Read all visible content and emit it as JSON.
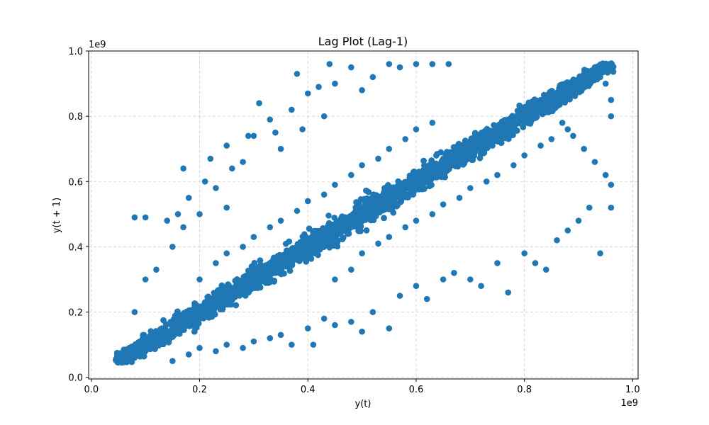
{
  "chart_data": {
    "type": "scatter",
    "title": "Lag Plot (Lag-1)",
    "xlabel": "y(t)",
    "ylabel": "y(t + 1)",
    "x_offset_label": "1e9",
    "y_offset_label": "1e9",
    "xlim": [
      0,
      1.01
    ],
    "ylim": [
      0,
      1.0
    ],
    "x_ticks": [
      0.0,
      0.2,
      0.4,
      0.6,
      0.8,
      1.0
    ],
    "y_ticks": [
      0.0,
      0.2,
      0.4,
      0.6,
      0.8,
      1.0
    ],
    "x_tick_labels": [
      "0.0",
      "0.2",
      "0.4",
      "0.6",
      "0.8",
      "1.0"
    ],
    "y_tick_labels": [
      "0.0",
      "0.2",
      "0.4",
      "0.6",
      "0.8",
      "1.0"
    ],
    "grid": true,
    "marker_color": "#1f77b4",
    "points": [
      [
        0.05,
        0.05
      ],
      [
        0.06,
        0.07
      ],
      [
        0.07,
        0.09
      ],
      [
        0.08,
        0.06
      ],
      [
        0.09,
        0.11
      ],
      [
        0.1,
        0.08
      ],
      [
        0.11,
        0.13
      ],
      [
        0.12,
        0.1
      ],
      [
        0.13,
        0.15
      ],
      [
        0.14,
        0.12
      ],
      [
        0.15,
        0.17
      ],
      [
        0.16,
        0.14
      ],
      [
        0.17,
        0.19
      ],
      [
        0.18,
        0.16
      ],
      [
        0.19,
        0.21
      ],
      [
        0.2,
        0.18
      ],
      [
        0.21,
        0.23
      ],
      [
        0.22,
        0.2
      ],
      [
        0.23,
        0.25
      ],
      [
        0.24,
        0.22
      ],
      [
        0.25,
        0.27
      ],
      [
        0.26,
        0.24
      ],
      [
        0.27,
        0.29
      ],
      [
        0.28,
        0.26
      ],
      [
        0.29,
        0.31
      ],
      [
        0.3,
        0.28
      ],
      [
        0.31,
        0.33
      ],
      [
        0.32,
        0.3
      ],
      [
        0.33,
        0.35
      ],
      [
        0.34,
        0.32
      ],
      [
        0.35,
        0.37
      ],
      [
        0.36,
        0.34
      ],
      [
        0.37,
        0.39
      ],
      [
        0.38,
        0.36
      ],
      [
        0.39,
        0.41
      ],
      [
        0.4,
        0.38
      ],
      [
        0.41,
        0.43
      ],
      [
        0.42,
        0.4
      ],
      [
        0.43,
        0.45
      ],
      [
        0.44,
        0.42
      ],
      [
        0.45,
        0.47
      ],
      [
        0.46,
        0.44
      ],
      [
        0.47,
        0.49
      ],
      [
        0.48,
        0.46
      ],
      [
        0.49,
        0.51
      ],
      [
        0.5,
        0.48
      ],
      [
        0.51,
        0.53
      ],
      [
        0.52,
        0.5
      ],
      [
        0.53,
        0.55
      ],
      [
        0.54,
        0.52
      ],
      [
        0.55,
        0.57
      ],
      [
        0.56,
        0.54
      ],
      [
        0.57,
        0.59
      ],
      [
        0.58,
        0.56
      ],
      [
        0.59,
        0.61
      ],
      [
        0.6,
        0.58
      ],
      [
        0.61,
        0.63
      ],
      [
        0.62,
        0.6
      ],
      [
        0.63,
        0.65
      ],
      [
        0.64,
        0.62
      ],
      [
        0.65,
        0.67
      ],
      [
        0.66,
        0.64
      ],
      [
        0.67,
        0.69
      ],
      [
        0.68,
        0.66
      ],
      [
        0.69,
        0.71
      ],
      [
        0.7,
        0.68
      ],
      [
        0.71,
        0.73
      ],
      [
        0.72,
        0.7
      ],
      [
        0.73,
        0.75
      ],
      [
        0.74,
        0.72
      ],
      [
        0.75,
        0.77
      ],
      [
        0.76,
        0.74
      ],
      [
        0.77,
        0.79
      ],
      [
        0.78,
        0.76
      ],
      [
        0.79,
        0.81
      ],
      [
        0.8,
        0.78
      ],
      [
        0.81,
        0.83
      ],
      [
        0.82,
        0.8
      ],
      [
        0.83,
        0.85
      ],
      [
        0.84,
        0.82
      ],
      [
        0.85,
        0.87
      ],
      [
        0.86,
        0.84
      ],
      [
        0.87,
        0.89
      ],
      [
        0.88,
        0.86
      ],
      [
        0.89,
        0.91
      ],
      [
        0.9,
        0.88
      ],
      [
        0.91,
        0.93
      ],
      [
        0.92,
        0.9
      ],
      [
        0.93,
        0.95
      ],
      [
        0.94,
        0.92
      ],
      [
        0.95,
        0.96
      ],
      [
        0.96,
        0.94
      ],
      [
        0.96,
        0.96
      ],
      [
        0.95,
        0.9
      ],
      [
        0.96,
        0.85
      ],
      [
        0.96,
        0.8
      ],
      [
        0.08,
        0.2
      ],
      [
        0.1,
        0.3
      ],
      [
        0.12,
        0.33
      ],
      [
        0.15,
        0.4
      ],
      [
        0.17,
        0.46
      ],
      [
        0.18,
        0.55
      ],
      [
        0.2,
        0.5
      ],
      [
        0.21,
        0.6
      ],
      [
        0.23,
        0.58
      ],
      [
        0.25,
        0.52
      ],
      [
        0.26,
        0.64
      ],
      [
        0.28,
        0.66
      ],
      [
        0.3,
        0.74
      ],
      [
        0.31,
        0.84
      ],
      [
        0.33,
        0.79
      ],
      [
        0.35,
        0.7
      ],
      [
        0.37,
        0.82
      ],
      [
        0.38,
        0.93
      ],
      [
        0.4,
        0.87
      ],
      [
        0.42,
        0.89
      ],
      [
        0.44,
        0.96
      ],
      [
        0.45,
        0.9
      ],
      [
        0.48,
        0.95
      ],
      [
        0.5,
        0.88
      ],
      [
        0.52,
        0.92
      ],
      [
        0.55,
        0.96
      ],
      [
        0.57,
        0.95
      ],
      [
        0.6,
        0.96
      ],
      [
        0.63,
        0.96
      ],
      [
        0.66,
        0.96
      ],
      [
        0.08,
        0.49
      ],
      [
        0.1,
        0.49
      ],
      [
        0.14,
        0.48
      ],
      [
        0.16,
        0.5
      ],
      [
        0.17,
        0.64
      ],
      [
        0.22,
        0.67
      ],
      [
        0.25,
        0.71
      ],
      [
        0.29,
        0.74
      ],
      [
        0.34,
        0.75
      ],
      [
        0.39,
        0.76
      ],
      [
        0.43,
        0.8
      ],
      [
        0.15,
        0.05
      ],
      [
        0.18,
        0.07
      ],
      [
        0.2,
        0.09
      ],
      [
        0.23,
        0.08
      ],
      [
        0.25,
        0.1
      ],
      [
        0.28,
        0.09
      ],
      [
        0.3,
        0.11
      ],
      [
        0.33,
        0.12
      ],
      [
        0.35,
        0.13
      ],
      [
        0.37,
        0.1
      ],
      [
        0.4,
        0.15
      ],
      [
        0.41,
        0.1
      ],
      [
        0.43,
        0.18
      ],
      [
        0.45,
        0.16
      ],
      [
        0.48,
        0.17
      ],
      [
        0.5,
        0.14
      ],
      [
        0.52,
        0.2
      ],
      [
        0.55,
        0.15
      ],
      [
        0.57,
        0.25
      ],
      [
        0.6,
        0.28
      ],
      [
        0.62,
        0.24
      ],
      [
        0.65,
        0.3
      ],
      [
        0.67,
        0.32
      ],
      [
        0.7,
        0.3
      ],
      [
        0.72,
        0.28
      ],
      [
        0.75,
        0.35
      ],
      [
        0.77,
        0.26
      ],
      [
        0.8,
        0.38
      ],
      [
        0.82,
        0.35
      ],
      [
        0.84,
        0.33
      ],
      [
        0.86,
        0.42
      ],
      [
        0.88,
        0.45
      ],
      [
        0.9,
        0.48
      ],
      [
        0.92,
        0.52
      ],
      [
        0.94,
        0.38
      ],
      [
        0.96,
        0.52
      ],
      [
        0.96,
        0.59
      ],
      [
        0.95,
        0.62
      ],
      [
        0.93,
        0.66
      ],
      [
        0.91,
        0.7
      ],
      [
        0.89,
        0.74
      ],
      [
        0.87,
        0.78
      ],
      [
        0.45,
        0.3
      ],
      [
        0.48,
        0.33
      ],
      [
        0.5,
        0.38
      ],
      [
        0.53,
        0.41
      ],
      [
        0.55,
        0.43
      ],
      [
        0.58,
        0.46
      ],
      [
        0.6,
        0.48
      ],
      [
        0.63,
        0.5
      ],
      [
        0.65,
        0.53
      ],
      [
        0.68,
        0.55
      ],
      [
        0.7,
        0.58
      ],
      [
        0.73,
        0.6
      ],
      [
        0.75,
        0.62
      ],
      [
        0.78,
        0.65
      ],
      [
        0.8,
        0.68
      ],
      [
        0.83,
        0.71
      ],
      [
        0.85,
        0.73
      ],
      [
        0.88,
        0.76
      ],
      [
        0.2,
        0.3
      ],
      [
        0.23,
        0.35
      ],
      [
        0.25,
        0.38
      ],
      [
        0.28,
        0.4
      ],
      [
        0.3,
        0.43
      ],
      [
        0.33,
        0.46
      ],
      [
        0.35,
        0.48
      ],
      [
        0.38,
        0.51
      ],
      [
        0.4,
        0.54
      ],
      [
        0.43,
        0.56
      ],
      [
        0.45,
        0.59
      ],
      [
        0.48,
        0.62
      ],
      [
        0.5,
        0.65
      ],
      [
        0.53,
        0.67
      ],
      [
        0.55,
        0.7
      ],
      [
        0.58,
        0.73
      ],
      [
        0.6,
        0.76
      ],
      [
        0.63,
        0.78
      ]
    ]
  }
}
